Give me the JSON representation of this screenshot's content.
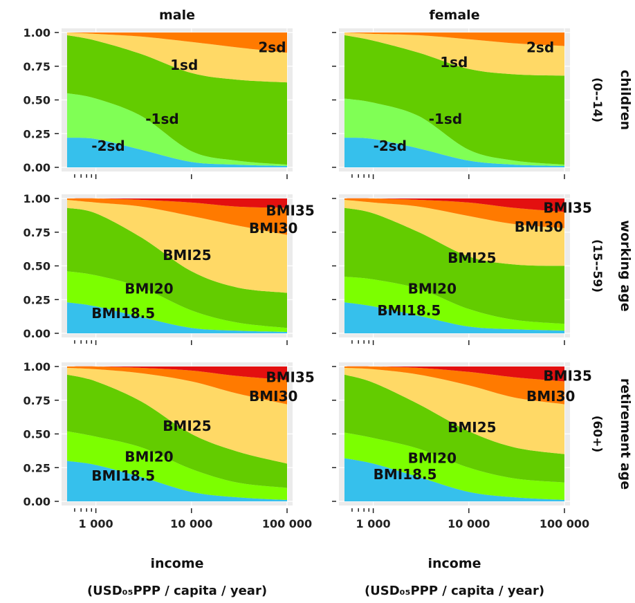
{
  "chart_data": {
    "type": "area",
    "stacked": true,
    "x_scale": "log10",
    "xlim": [
      500,
      100000
    ],
    "ylim": [
      0,
      1
    ],
    "yticks": [
      "0.00",
      "0.25",
      "0.50",
      "0.75",
      "1.00"
    ],
    "xticks": [
      {
        "value": 1000,
        "label": "1 000"
      },
      {
        "value": 10000,
        "label": "10 000"
      },
      {
        "value": 100000,
        "label": "100 000"
      }
    ],
    "xlabel_line1": "income",
    "xlabel_line2": "(USD₀₅PPP / capita / year)",
    "column_labels": [
      "male",
      "female"
    ],
    "row_labels": [
      [
        "children",
        "(0--14)"
      ],
      [
        "working age",
        "(15--59)"
      ],
      [
        "retirement age",
        "(60+)"
      ]
    ],
    "colors": {
      "panel_bg": "#ebebeb",
      "grid": "#ffffff",
      "children": [
        "#36c0ec",
        "#80ff55",
        "#63cc00",
        "#ffd966",
        "#ff7a00"
      ],
      "adult": [
        "#36c0ec",
        "#7cff00",
        "#63cc00",
        "#ffd966",
        "#ff7a00",
        "#e31010"
      ]
    },
    "x_samples": [
      500,
      1000,
      3000,
      10000,
      30000,
      100000
    ],
    "panels": [
      {
        "row": 0,
        "col": 0,
        "categories": [
          "-2sd",
          "-1sd",
          "1sd",
          "2sd"
        ],
        "boundaries": [
          [
            0.22,
            0.21,
            0.13,
            0.04,
            0.02,
            0.01
          ],
          [
            0.55,
            0.51,
            0.38,
            0.12,
            0.05,
            0.02
          ],
          [
            0.98,
            0.94,
            0.84,
            0.7,
            0.65,
            0.63
          ],
          [
            1.0,
            0.99,
            0.97,
            0.93,
            0.89,
            0.85
          ]
        ],
        "labels": [
          {
            "text": "-2sd",
            "x": 900,
            "y": 0.16
          },
          {
            "text": "-1sd",
            "x": 3300,
            "y": 0.36
          },
          {
            "text": "1sd",
            "x": 6000,
            "y": 0.76
          },
          {
            "text": "2sd",
            "x": 50000,
            "y": 0.89
          }
        ]
      },
      {
        "row": 0,
        "col": 1,
        "categories": [
          "-2sd",
          "-1sd",
          "1sd",
          "2sd"
        ],
        "boundaries": [
          [
            0.22,
            0.21,
            0.14,
            0.05,
            0.02,
            0.01
          ],
          [
            0.51,
            0.48,
            0.38,
            0.13,
            0.05,
            0.02
          ],
          [
            0.98,
            0.94,
            0.85,
            0.73,
            0.69,
            0.68
          ],
          [
            1.0,
            0.99,
            0.98,
            0.95,
            0.92,
            0.9
          ]
        ],
        "labels": [
          {
            "text": "-2sd",
            "x": 1000,
            "y": 0.16
          },
          {
            "text": "-1sd",
            "x": 3800,
            "y": 0.36
          },
          {
            "text": "1sd",
            "x": 5000,
            "y": 0.78
          },
          {
            "text": "2sd",
            "x": 40000,
            "y": 0.89
          }
        ]
      },
      {
        "row": 1,
        "col": 0,
        "categories": [
          "BMI18.5",
          "BMI20",
          "BMI25",
          "BMI30",
          "BMI35"
        ],
        "boundaries": [
          [
            0.23,
            0.2,
            0.12,
            0.04,
            0.02,
            0.01
          ],
          [
            0.46,
            0.43,
            0.34,
            0.17,
            0.08,
            0.04
          ],
          [
            0.93,
            0.89,
            0.71,
            0.46,
            0.34,
            0.3
          ],
          [
            0.99,
            0.97,
            0.94,
            0.87,
            0.8,
            0.73
          ],
          [
            1.0,
            1.0,
            0.99,
            0.97,
            0.94,
            0.93
          ]
        ],
        "labels": [
          {
            "text": "BMI18.5",
            "x": 900,
            "y": 0.15
          },
          {
            "text": "BMI20",
            "x": 2000,
            "y": 0.33
          },
          {
            "text": "BMI25",
            "x": 5000,
            "y": 0.58
          },
          {
            "text": "BMI30",
            "x": 40000,
            "y": 0.78
          },
          {
            "text": "BMI35",
            "x": 60000,
            "y": 0.91
          }
        ]
      },
      {
        "row": 1,
        "col": 1,
        "categories": [
          "BMI18.5",
          "BMI20",
          "BMI25",
          "BMI30",
          "BMI35"
        ],
        "boundaries": [
          [
            0.23,
            0.2,
            0.13,
            0.05,
            0.03,
            0.02
          ],
          [
            0.42,
            0.4,
            0.33,
            0.18,
            0.1,
            0.07
          ],
          [
            0.93,
            0.89,
            0.75,
            0.57,
            0.51,
            0.5
          ],
          [
            0.99,
            0.97,
            0.94,
            0.87,
            0.81,
            0.78
          ],
          [
            1.0,
            1.0,
            0.99,
            0.97,
            0.93,
            0.9
          ]
        ],
        "labels": [
          {
            "text": "BMI18.5",
            "x": 1100,
            "y": 0.17
          },
          {
            "text": "BMI20",
            "x": 2300,
            "y": 0.33
          },
          {
            "text": "BMI25",
            "x": 6000,
            "y": 0.56
          },
          {
            "text": "BMI30",
            "x": 30000,
            "y": 0.79
          },
          {
            "text": "BMI35",
            "x": 60000,
            "y": 0.93
          }
        ]
      },
      {
        "row": 2,
        "col": 0,
        "categories": [
          "BMI18.5",
          "BMI20",
          "BMI25",
          "BMI30",
          "BMI35"
        ],
        "boundaries": [
          [
            0.3,
            0.27,
            0.18,
            0.07,
            0.03,
            0.01
          ],
          [
            0.52,
            0.48,
            0.4,
            0.24,
            0.14,
            0.1
          ],
          [
            0.94,
            0.89,
            0.74,
            0.5,
            0.37,
            0.28
          ],
          [
            0.99,
            0.98,
            0.95,
            0.89,
            0.8,
            0.72
          ],
          [
            1.0,
            1.0,
            0.99,
            0.97,
            0.93,
            0.9
          ]
        ],
        "labels": [
          {
            "text": "BMI18.5",
            "x": 900,
            "y": 0.19
          },
          {
            "text": "BMI20",
            "x": 2000,
            "y": 0.33
          },
          {
            "text": "BMI25",
            "x": 5000,
            "y": 0.56
          },
          {
            "text": "BMI30",
            "x": 40000,
            "y": 0.78
          },
          {
            "text": "BMI35",
            "x": 60000,
            "y": 0.92
          }
        ]
      },
      {
        "row": 2,
        "col": 1,
        "categories": [
          "BMI18.5",
          "BMI20",
          "BMI25",
          "BMI30",
          "BMI35"
        ],
        "boundaries": [
          [
            0.32,
            0.28,
            0.18,
            0.07,
            0.03,
            0.01
          ],
          [
            0.51,
            0.47,
            0.39,
            0.25,
            0.17,
            0.14
          ],
          [
            0.94,
            0.88,
            0.72,
            0.52,
            0.4,
            0.35
          ],
          [
            0.99,
            0.98,
            0.94,
            0.86,
            0.77,
            0.72
          ],
          [
            1.0,
            1.0,
            0.99,
            0.96,
            0.92,
            0.89
          ]
        ],
        "labels": [
          {
            "text": "BMI18.5",
            "x": 1000,
            "y": 0.2
          },
          {
            "text": "BMI20",
            "x": 2300,
            "y": 0.32
          },
          {
            "text": "BMI25",
            "x": 6000,
            "y": 0.55
          },
          {
            "text": "BMI30",
            "x": 40000,
            "y": 0.78
          },
          {
            "text": "BMI35",
            "x": 60000,
            "y": 0.93
          }
        ]
      }
    ]
  }
}
